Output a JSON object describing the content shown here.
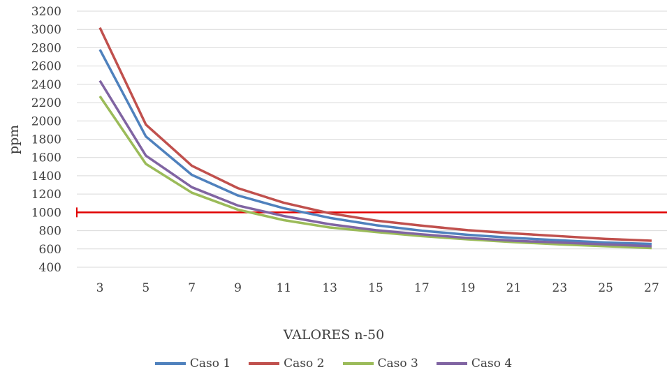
{
  "chart_data": {
    "type": "line",
    "xlabel": "VALORES n-50",
    "ylabel": "ppm",
    "x": [
      3,
      5,
      7,
      9,
      11,
      13,
      15,
      17,
      19,
      21,
      23,
      25,
      27
    ],
    "ylim": [
      400,
      3200
    ],
    "yticks": [
      400,
      600,
      800,
      1000,
      1200,
      1400,
      1600,
      1800,
      2000,
      2200,
      2400,
      2600,
      2800,
      3000,
      3200
    ],
    "grid": true,
    "legend_position": "bottom",
    "series": [
      {
        "name": "Caso 1",
        "color": "#4f81bd",
        "values": [
          2780,
          1830,
          1410,
          1185,
          1045,
          940,
          860,
          800,
          755,
          720,
          695,
          670,
          655
        ]
      },
      {
        "name": "Caso 2",
        "color": "#c0504d",
        "values": [
          3020,
          1960,
          1510,
          1265,
          1105,
          990,
          910,
          855,
          805,
          770,
          740,
          710,
          690
        ]
      },
      {
        "name": "Caso 3",
        "color": "#9bbb59",
        "values": [
          2270,
          1530,
          1215,
          1030,
          915,
          835,
          785,
          740,
          705,
          675,
          650,
          630,
          610
        ]
      },
      {
        "name": "Caso 4",
        "color": "#8064a2",
        "values": [
          2440,
          1620,
          1275,
          1075,
          960,
          870,
          805,
          760,
          720,
          690,
          670,
          650,
          630
        ]
      }
    ],
    "reference_line": {
      "value": 1000,
      "color": "#e00000"
    }
  }
}
